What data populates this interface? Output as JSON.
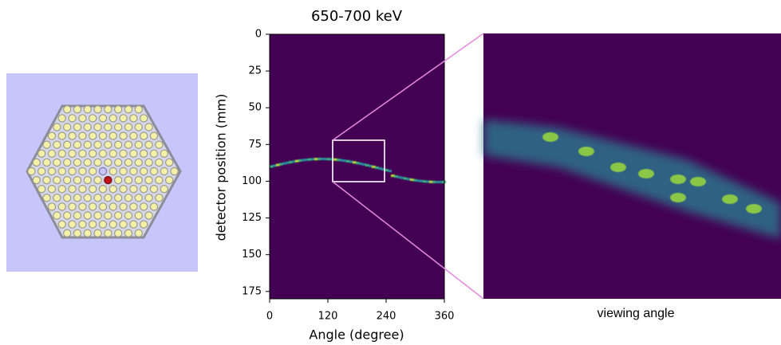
{
  "chart_data": {
    "type": "heatmap",
    "title": "650-700 keV",
    "x_label": "Angle (degree)",
    "y_label": "detector position (mm)",
    "xlim": [
      0,
      360
    ],
    "xticks": [
      0,
      120,
      240,
      360
    ],
    "ylim": [
      180,
      0
    ],
    "yticks": [
      0,
      25,
      50,
      75,
      100,
      125,
      150,
      175
    ],
    "inset_label": "viewing angle"
  }
}
